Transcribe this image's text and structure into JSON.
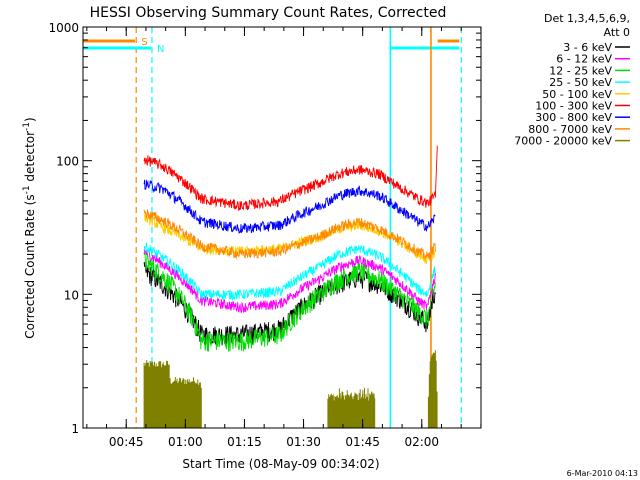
{
  "chart_data": {
    "type": "line",
    "title": "HESSI Observing Summary Count Rates, Corrected",
    "xlabel": "Start Time (08-May-09 00:34:02)",
    "ylabel_main": "Corrected Count Rate (s",
    "ylabel_sup1": "-1",
    "ylabel_mid": " detector",
    "ylabel_sup2": "-1",
    "ylabel_end": ")",
    "x_unit": "minutes after 00:34:02",
    "xlim": [
      0,
      101
    ],
    "ylim": [
      1,
      1000
    ],
    "yscale": "log",
    "grid": false,
    "legend_position": "right",
    "x_ticks": [
      {
        "label": "00:45",
        "value": 10.97
      },
      {
        "label": "01:00",
        "value": 25.97
      },
      {
        "label": "01:15",
        "value": 40.97
      },
      {
        "label": "01:30",
        "value": 55.97
      },
      {
        "label": "01:45",
        "value": 70.97
      },
      {
        "label": "02:00",
        "value": 85.97
      }
    ],
    "y_ticks": [
      {
        "label": "1",
        "value": 1
      },
      {
        "label": "10",
        "value": 10
      },
      {
        "label": "100",
        "value": 100
      },
      {
        "label": "1000",
        "value": 1000
      }
    ],
    "legend_header_1": "Det 1,3,4,5,6,9,",
    "legend_header_2": "Att 0",
    "series": [
      {
        "name": "3 - 6 keV",
        "color": "#000000",
        "x": [
          15.5,
          20,
          30,
          40,
          50,
          60,
          65,
          70,
          75,
          80,
          85,
          87.5,
          89.5
        ],
        "y": [
          15,
          12,
          5,
          5,
          5.5,
          10,
          12,
          13.5,
          12,
          9.5,
          7,
          6,
          11
        ]
      },
      {
        "name": "6 - 12 keV",
        "color": "#ff00ff",
        "x": [
          15.5,
          20,
          30,
          40,
          50,
          60,
          65,
          70,
          75,
          80,
          85,
          87.5,
          89.5
        ],
        "y": [
          21,
          17,
          9,
          8,
          8.5,
          13,
          16,
          18,
          16,
          12.5,
          9,
          8,
          14
        ]
      },
      {
        "name": "12 - 25 keV",
        "color": "#00dd00",
        "x": [
          15.5,
          20,
          30,
          40,
          50,
          60,
          65,
          70,
          75,
          80,
          85,
          87.5,
          89.5
        ],
        "y": [
          18,
          14,
          4.5,
          4.5,
          5,
          10,
          13,
          15,
          13,
          10,
          7.5,
          6.5,
          12
        ]
      },
      {
        "name": "25 - 50 keV",
        "color": "#00ffff",
        "x": [
          15.5,
          20,
          30,
          40,
          50,
          60,
          65,
          70,
          75,
          80,
          85,
          87.5,
          89.5
        ],
        "y": [
          23,
          19,
          10,
          10,
          10.5,
          16,
          20,
          22,
          19.5,
          15,
          11,
          10,
          16
        ]
      },
      {
        "name": "50 - 100 keV",
        "color": "#ffcc00",
        "x": [
          15.5,
          20,
          30,
          40,
          50,
          60,
          65,
          70,
          75,
          80,
          85,
          87.5,
          89.5
        ],
        "y": [
          38,
          32,
          22,
          21,
          22,
          27,
          31,
          33,
          30,
          25,
          20,
          18,
          21
        ]
      },
      {
        "name": "100 - 300 keV",
        "color": "#ff0000",
        "x": [
          15.5,
          20,
          30,
          40,
          50,
          60,
          65,
          70,
          75,
          80,
          85,
          87.5,
          89.5,
          90
        ],
        "y": [
          103,
          92,
          52,
          46,
          50,
          68,
          80,
          86,
          80,
          64,
          52,
          48,
          55,
          140
        ]
      },
      {
        "name": "300 - 800 keV",
        "color": "#0000ff",
        "x": [
          15.5,
          20,
          30,
          40,
          50,
          60,
          65,
          70,
          75,
          80,
          85,
          87.5,
          89.5
        ],
        "y": [
          67,
          62,
          35,
          31,
          33,
          46,
          55,
          60,
          55,
          44,
          35,
          32,
          38
        ]
      },
      {
        "name": "800 - 7000 keV",
        "color": "#ff8800",
        "x": [
          15.5,
          20,
          30,
          40,
          50,
          60,
          65,
          70,
          75,
          80,
          85,
          87.5,
          89.5
        ],
        "y": [
          41,
          36,
          23,
          20,
          21,
          27,
          32,
          35,
          31,
          26,
          21,
          19,
          23
        ]
      },
      {
        "name": "7000 - 20000 keV",
        "color": "#808000",
        "x": [
          15.5,
          22,
          22.1,
          30,
          30.1,
          62,
          62.1,
          74,
          74.1,
          87.5,
          88,
          89.5,
          90
        ],
        "y": [
          2.8,
          2.8,
          2.1,
          2.1,
          1,
          1,
          1.6,
          1.6,
          1,
          1,
          3,
          3.5,
          1
        ]
      }
    ],
    "markers": [
      {
        "label": "S",
        "color": "#ff8800",
        "style": "dashed",
        "x": 13.5,
        "bar_from": 0,
        "bar_to": 13.2
      },
      {
        "label": "N",
        "color": "#00ffff",
        "style": "dashed",
        "x": 17.5,
        "bar_from": 0,
        "bar_to": 17.3
      },
      {
        "label": "",
        "color": "#00ffff",
        "style": "solid",
        "x": 78,
        "bar_from": 78,
        "bar_to": 95.5
      },
      {
        "label": "",
        "color": "#ff8800",
        "style": "solid",
        "x": 88.3,
        "bar_from": 90,
        "bar_to": 95.5
      },
      {
        "label": "",
        "color": "#00ffff",
        "style": "dashed",
        "x": 96,
        "bar_from": null,
        "bar_to": null
      }
    ],
    "timestamp": "6-Mar-2010 04:13"
  }
}
